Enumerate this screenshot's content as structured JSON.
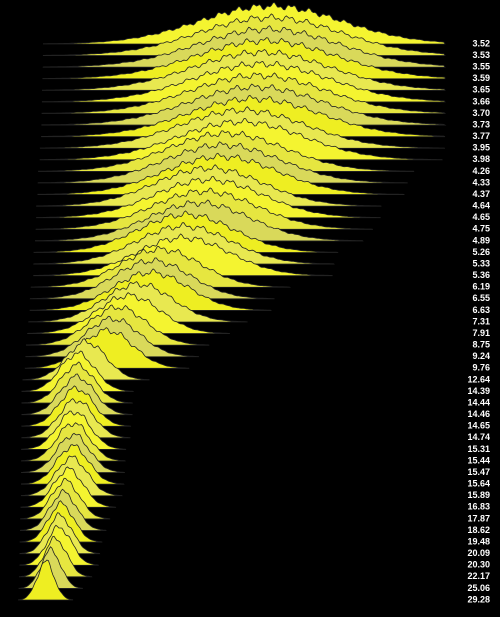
{
  "chart_data": {
    "type": "ridgeline",
    "values": [
      3.52,
      3.53,
      3.55,
      3.59,
      3.65,
      3.66,
      3.7,
      3.73,
      3.77,
      3.95,
      3.98,
      4.26,
      4.33,
      4.37,
      4.64,
      4.65,
      4.75,
      4.89,
      5.26,
      5.33,
      5.36,
      6.19,
      6.55,
      6.63,
      7.31,
      7.91,
      8.75,
      9.24,
      9.76,
      12.64,
      14.39,
      14.44,
      14.46,
      14.65,
      14.74,
      15.31,
      15.44,
      15.47,
      15.64,
      15.89,
      16.83,
      17.87,
      18.62,
      19.48,
      20.09,
      20.3,
      22.17,
      25.06,
      29.28
    ],
    "value_labels": [
      "3.52",
      "3.53",
      "3.55",
      "3.59",
      "3.65",
      "3.66",
      "3.70",
      "3.73",
      "3.77",
      "3.95",
      "3.98",
      "4.26",
      "4.33",
      "4.37",
      "4.64",
      "4.65",
      "4.75",
      "4.89",
      "5.26",
      "5.33",
      "5.36",
      "6.19",
      "6.55",
      "6.63",
      "7.31",
      "7.91",
      "8.75",
      "9.24",
      "9.76",
      "12.64",
      "14.39",
      "14.44",
      "14.46",
      "14.65",
      "14.74",
      "15.31",
      "15.44",
      "15.47",
      "15.64",
      "15.89",
      "16.83",
      "17.87",
      "18.62",
      "19.48",
      "20.09",
      "20.30",
      "22.17",
      "25.06",
      "29.28"
    ],
    "colors": [
      "#f4f430",
      "#e6e640",
      "#d9d95a",
      "#eeee22",
      "#e8e850"
    ]
  }
}
